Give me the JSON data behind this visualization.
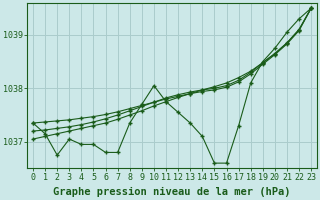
{
  "background_color": "#cce8e8",
  "grid_color": "#aacccc",
  "line_color": "#1a5c1a",
  "marker_color": "#1a5c1a",
  "xlabel": "Graphe pression niveau de la mer (hPa)",
  "xlabel_fontsize": 7.5,
  "tick_fontsize": 6,
  "xlim": [
    -0.5,
    23.5
  ],
  "ylim": [
    1036.5,
    1039.6
  ],
  "yticks": [
    1037,
    1038,
    1039
  ],
  "xticks": [
    0,
    1,
    2,
    3,
    4,
    5,
    6,
    7,
    8,
    9,
    10,
    11,
    12,
    13,
    14,
    15,
    16,
    17,
    18,
    19,
    20,
    21,
    22,
    23
  ],
  "series": {
    "main": [
      1037.35,
      1037.15,
      1036.75,
      1037.05,
      1036.95,
      1036.95,
      1036.8,
      1036.8,
      1037.35,
      1037.7,
      1038.05,
      1037.75,
      1037.55,
      1037.35,
      1037.1,
      1036.6,
      1036.6,
      1037.3,
      1038.1,
      1038.5,
      1038.75,
      1039.05,
      1039.3,
      1039.5
    ],
    "trend1": [
      1037.05,
      1037.1,
      1037.15,
      1037.2,
      1037.25,
      1037.3,
      1037.35,
      1037.42,
      1037.5,
      1037.58,
      1037.67,
      1037.75,
      1037.83,
      1037.9,
      1037.97,
      1038.03,
      1038.1,
      1038.2,
      1038.32,
      1038.48,
      1038.65,
      1038.85,
      1039.1,
      1039.5
    ],
    "trend2": [
      1037.2,
      1037.22,
      1037.25,
      1037.28,
      1037.32,
      1037.37,
      1037.43,
      1037.5,
      1037.58,
      1037.66,
      1037.74,
      1037.82,
      1037.88,
      1037.93,
      1037.97,
      1038.0,
      1038.05,
      1038.15,
      1038.3,
      1038.48,
      1038.65,
      1038.85,
      1039.1,
      1039.5
    ],
    "trend3": [
      1037.35,
      1037.37,
      1037.39,
      1037.41,
      1037.44,
      1037.47,
      1037.51,
      1037.56,
      1037.62,
      1037.68,
      1037.74,
      1037.8,
      1037.85,
      1037.9,
      1037.94,
      1037.97,
      1038.02,
      1038.12,
      1038.27,
      1038.45,
      1038.63,
      1038.83,
      1039.08,
      1039.5
    ]
  }
}
